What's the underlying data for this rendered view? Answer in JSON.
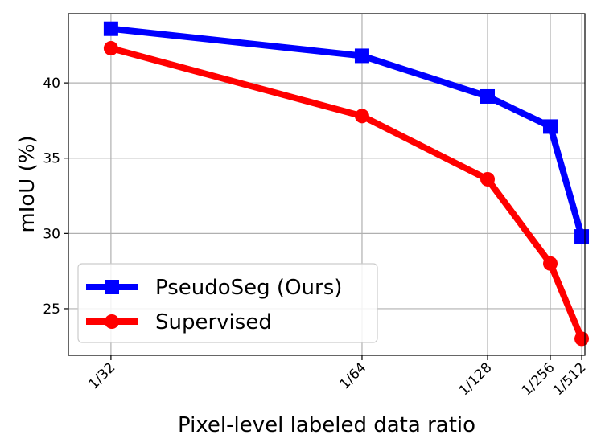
{
  "chart_data": {
    "type": "line",
    "title": "",
    "xlabel": "Pixel-level labeled data ratio",
    "ylabel": "mIoU (%)",
    "categories": [
      "1/32",
      "1/64",
      "1/128",
      "1/256",
      "1/512"
    ],
    "x_values": [
      32,
      64,
      128,
      256,
      512
    ],
    "x_scale": "reciprocal",
    "xlim": [
      29.5,
      570
    ],
    "ylim": [
      21.9,
      44.6
    ],
    "yticks": [
      25,
      30,
      35,
      40
    ],
    "grid": true,
    "legend_position": "lower-left",
    "series": [
      {
        "name": "PseudoSeg (Ours)",
        "color": "#0000ff",
        "marker": "square",
        "values": [
          43.6,
          41.8,
          39.1,
          37.1,
          29.8
        ]
      },
      {
        "name": "Supervised",
        "color": "#ff0000",
        "marker": "circle",
        "values": [
          42.3,
          37.8,
          33.6,
          28.0,
          23.0
        ]
      }
    ]
  }
}
